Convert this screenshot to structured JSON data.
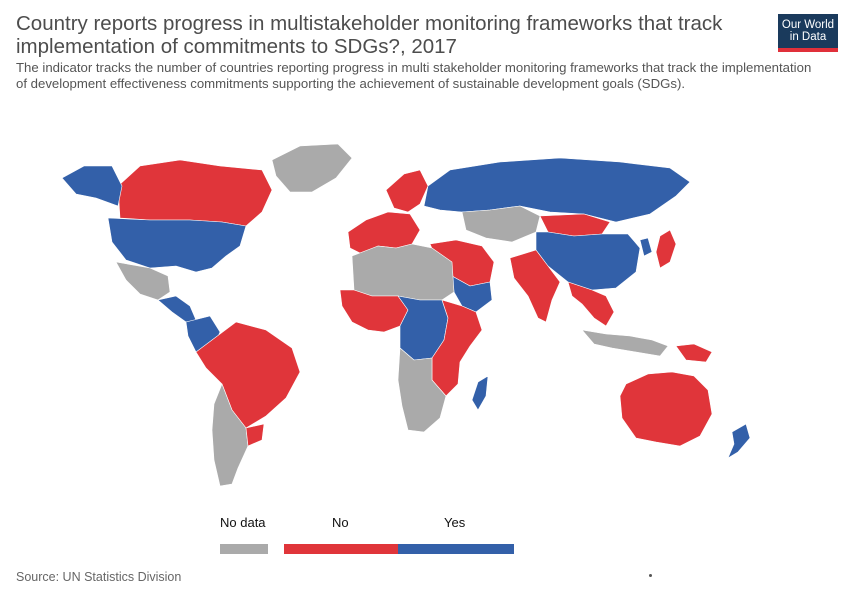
{
  "header": {
    "title": "Country reports progress in multistakeholder monitoring frameworks that track implementation of commitments to SDGs?, 2017",
    "subtitle": "The indicator tracks the number of countries reporting progress in multi stakeholder monitoring frameworks that track the implementation of development effectiveness commitments supporting the achievement of sustainable development goals (SDGs).",
    "logo_line1": "Our World",
    "logo_line2": "in Data"
  },
  "chart_data": {
    "type": "choropleth-map",
    "legend": [
      {
        "label": "No data",
        "color": "#aaaaaa"
      },
      {
        "label": "No",
        "color": "#e0353a"
      },
      {
        "label": "Yes",
        "color": "#3360a9"
      }
    ],
    "regions": [
      {
        "name": "Canada",
        "category": "No"
      },
      {
        "name": "Alaska",
        "category": "Yes"
      },
      {
        "name": "United States",
        "category": "Yes"
      },
      {
        "name": "Greenland",
        "category": "No data"
      },
      {
        "name": "Mexico",
        "category": "No data"
      },
      {
        "name": "Central America",
        "category": "Yes"
      },
      {
        "name": "Colombia",
        "category": "Yes"
      },
      {
        "name": "Northern South America",
        "category": "No"
      },
      {
        "name": "Argentina and Chile",
        "category": "No data"
      },
      {
        "name": "Uruguay",
        "category": "No"
      },
      {
        "name": "Western Europe",
        "category": "No"
      },
      {
        "name": "Scandinavia",
        "category": "No"
      },
      {
        "name": "Russia",
        "category": "Yes"
      },
      {
        "name": "Central Asia",
        "category": "No data"
      },
      {
        "name": "Mongolia",
        "category": "No"
      },
      {
        "name": "China",
        "category": "Yes"
      },
      {
        "name": "India",
        "category": "No"
      },
      {
        "name": "Southeast Asia",
        "category": "No"
      },
      {
        "name": "Indonesia",
        "category": "No data"
      },
      {
        "name": "Papua New Guinea",
        "category": "No"
      },
      {
        "name": "Japan",
        "category": "No"
      },
      {
        "name": "Korea",
        "category": "Yes"
      },
      {
        "name": "Middle East",
        "category": "No"
      },
      {
        "name": "Saudi Arabia",
        "category": "Yes"
      },
      {
        "name": "North Africa",
        "category": "No data"
      },
      {
        "name": "West Africa",
        "category": "No"
      },
      {
        "name": "Central Africa",
        "category": "Yes"
      },
      {
        "name": "East Africa",
        "category": "No"
      },
      {
        "name": "Madagascar",
        "category": "Yes"
      },
      {
        "name": "Southern Africa",
        "category": "No data"
      },
      {
        "name": "Australia",
        "category": "No"
      },
      {
        "name": "New Zealand",
        "category": "Yes"
      }
    ]
  },
  "footer": {
    "source": "Source: UN Statistics Division"
  }
}
